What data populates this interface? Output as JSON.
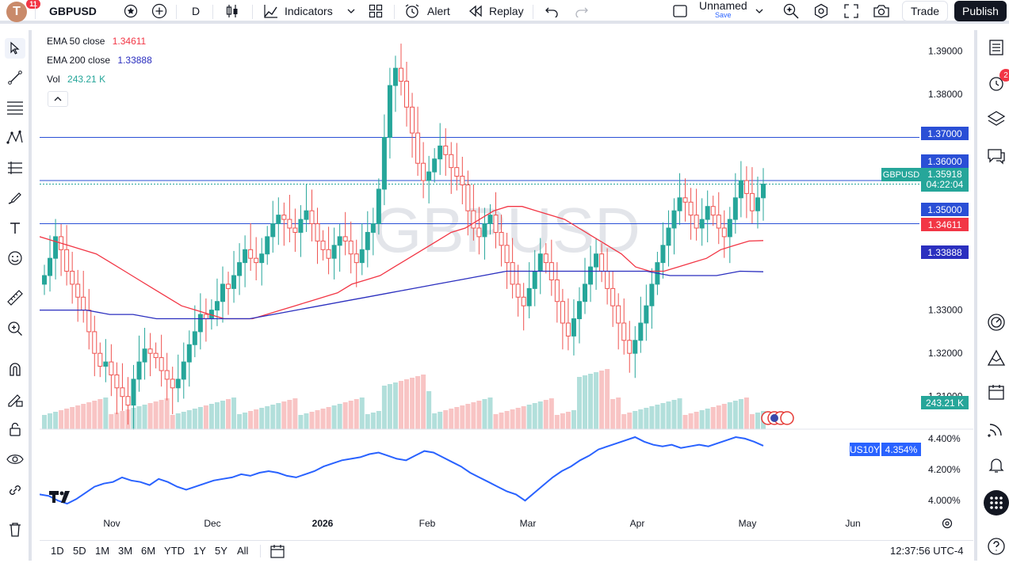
{
  "topbar": {
    "avatar_letter": "T",
    "avatar_badge": "11",
    "symbol": "GBPUSD",
    "interval": "D",
    "indicators_label": "Indicators",
    "alert_label": "Alert",
    "replay_label": "Replay",
    "layout_name": "Unnamed",
    "layout_save": "Save",
    "trade_label": "Trade",
    "publish_label": "Publish"
  },
  "legend": {
    "ema50_label": "EMA 50 close",
    "ema50_value": "1.34611",
    "ema200_label": "EMA 200 close",
    "ema200_value": "1.33888",
    "vol_label": "Vol",
    "vol_value": "243.21 K"
  },
  "colors": {
    "up": "#26a69a",
    "down": "#ef5350",
    "ema50": "#f23645",
    "ema200": "#2b2fbf",
    "hline": "#2a4fd6",
    "us10y": "#2962ff",
    "vol_up": "#b2dfdb",
    "vol_down": "#f8c4c4"
  },
  "watermark": "GBPUSD",
  "chart_data": {
    "type": "candlestick",
    "symbol": "GBPUSD",
    "interval": "D",
    "ylim": [
      1.305,
      1.393
    ],
    "y_ticks": [
      "1.39000",
      "1.38000",
      "1.33000",
      "1.32000",
      "1.31000"
    ],
    "x_ticks": [
      "Nov",
      "Dec",
      "2026",
      "Feb",
      "Mar",
      "Apr",
      "May",
      "Jun"
    ],
    "horizontal_lines": [
      1.37,
      1.36,
      1.35
    ],
    "price_labels": {
      "level_137": "1.37000",
      "level_136": "1.36000",
      "level_135": "1.35000",
      "symbol_tag": "GBPUSD",
      "last_price": "1.35918",
      "countdown": "04:22:04",
      "ema50": "1.34611",
      "ema200": "1.33888",
      "volume": "243.21 K"
    },
    "candles_close_path": [
      1.338,
      1.342,
      1.347,
      1.344,
      1.339,
      1.336,
      1.333,
      1.33,
      1.325,
      1.32,
      1.317,
      1.318,
      1.315,
      1.312,
      1.31,
      1.308,
      1.314,
      1.318,
      1.321,
      1.32,
      1.319,
      1.316,
      1.314,
      1.312,
      1.314,
      1.318,
      1.322,
      1.325,
      1.329,
      1.328,
      1.33,
      1.332,
      1.336,
      1.335,
      1.338,
      1.341,
      1.344,
      1.342,
      1.341,
      1.343,
      1.347,
      1.35,
      1.352,
      1.351,
      1.349,
      1.348,
      1.351,
      1.353,
      1.35,
      1.346,
      1.344,
      1.342,
      1.345,
      1.347,
      1.346,
      1.343,
      1.341,
      1.344,
      1.348,
      1.35,
      1.358,
      1.37,
      1.382,
      1.386,
      1.383,
      1.377,
      1.371,
      1.364,
      1.36,
      1.362,
      1.365,
      1.368,
      1.366,
      1.363,
      1.361,
      1.359,
      1.353,
      1.349,
      1.347,
      1.35,
      1.352,
      1.348,
      1.345,
      1.341,
      1.336,
      1.333,
      1.331,
      1.335,
      1.339,
      1.343,
      1.341,
      1.337,
      1.332,
      1.327,
      1.324,
      1.328,
      1.332,
      1.336,
      1.34,
      1.343,
      1.339,
      1.335,
      1.331,
      1.327,
      1.323,
      1.32,
      1.323,
      1.327,
      1.331,
      1.336,
      1.341,
      1.345,
      1.349,
      1.353,
      1.356,
      1.355,
      1.352,
      1.349,
      1.351,
      1.354,
      1.352,
      1.349,
      1.347,
      1.351,
      1.356,
      1.36,
      1.357,
      1.353,
      1.356,
      1.35918
    ],
    "ema50_path": [
      1.347,
      1.346,
      1.345,
      1.344,
      1.343,
      1.341,
      1.339,
      1.337,
      1.335,
      1.333,
      1.331,
      1.33,
      1.329,
      1.328,
      1.328,
      1.328,
      1.329,
      1.33,
      1.331,
      1.332,
      1.333,
      1.334,
      1.336,
      1.337,
      1.338,
      1.34,
      1.342,
      1.344,
      1.346,
      1.348,
      1.349,
      1.351,
      1.353,
      1.354,
      1.354,
      1.353,
      1.352,
      1.351,
      1.349,
      1.347,
      1.345,
      1.343,
      1.34,
      1.339,
      1.339,
      1.34,
      1.341,
      1.342,
      1.344,
      1.345,
      1.346,
      1.34611
    ],
    "ema200_path": [
      1.33,
      1.33,
      1.33,
      1.329,
      1.329,
      1.328,
      1.328,
      1.328,
      1.328,
      1.328,
      1.329,
      1.33,
      1.331,
      1.332,
      1.333,
      1.334,
      1.335,
      1.336,
      1.337,
      1.338,
      1.339,
      1.339,
      1.339,
      1.339,
      1.339,
      1.339,
      1.339,
      1.338,
      1.338,
      1.338,
      1.339,
      1.33888
    ],
    "volume_last": "243.21 K",
    "compare": {
      "name": "US10Y",
      "last_value": "4.354%",
      "y_ticks": [
        "4.400%",
        "4.200%",
        "4.000%"
      ],
      "ylim": [
        3.95,
        4.42
      ],
      "values": [
        4.04,
        4.03,
        4.0,
        3.98,
        4.01,
        4.05,
        4.09,
        4.11,
        4.12,
        4.15,
        4.13,
        4.12,
        4.1,
        4.14,
        4.12,
        4.09,
        4.07,
        4.09,
        4.11,
        4.13,
        4.14,
        4.15,
        4.17,
        4.16,
        4.18,
        4.19,
        4.18,
        4.16,
        4.15,
        4.17,
        4.19,
        4.22,
        4.24,
        4.26,
        4.27,
        4.28,
        4.3,
        4.31,
        4.29,
        4.27,
        4.26,
        4.29,
        4.32,
        4.31,
        4.28,
        4.25,
        4.22,
        4.18,
        4.15,
        4.12,
        4.09,
        4.06,
        4.04,
        4.0,
        4.05,
        4.1,
        4.15,
        4.19,
        4.22,
        4.26,
        4.29,
        4.33,
        4.35,
        4.37,
        4.39,
        4.41,
        4.38,
        4.36,
        4.35,
        4.36,
        4.34,
        4.35,
        4.36,
        4.35,
        4.37,
        4.39,
        4.41,
        4.4,
        4.38,
        4.354
      ]
    }
  },
  "time_axis": {
    "labels": [
      "Nov",
      "Dec",
      "2026",
      "Feb",
      "Mar",
      "Apr",
      "May",
      "Jun"
    ]
  },
  "bottombar": {
    "timeframes": [
      "1D",
      "5D",
      "1M",
      "3M",
      "6M",
      "YTD",
      "1Y",
      "5Y",
      "All"
    ],
    "clock": "12:37:56 UTC-4"
  },
  "right_toolbar": {
    "alerts_badge": "2"
  },
  "icons": [
    "star-icon",
    "plus-icon",
    "candles-icon",
    "indicators-icon",
    "layouts-icon",
    "alert-icon",
    "replay-icon",
    "undo-icon",
    "redo-icon",
    "cursor-icon",
    "trend-line-icon",
    "fib-icon",
    "pattern-icon",
    "projection-icon",
    "brush-icon",
    "text-icon",
    "emoji-icon",
    "ruler-icon",
    "zoom-icon",
    "magnet-icon",
    "lock-draw-icon",
    "lock-icon",
    "eye-icon",
    "link-icon",
    "trash-icon",
    "watchlist-icon",
    "alerts-icon",
    "layers-icon",
    "chat-icon",
    "calendar-icon",
    "ideas-icon",
    "bell-icon",
    "apps-icon",
    "help-icon",
    "settings-icon"
  ]
}
